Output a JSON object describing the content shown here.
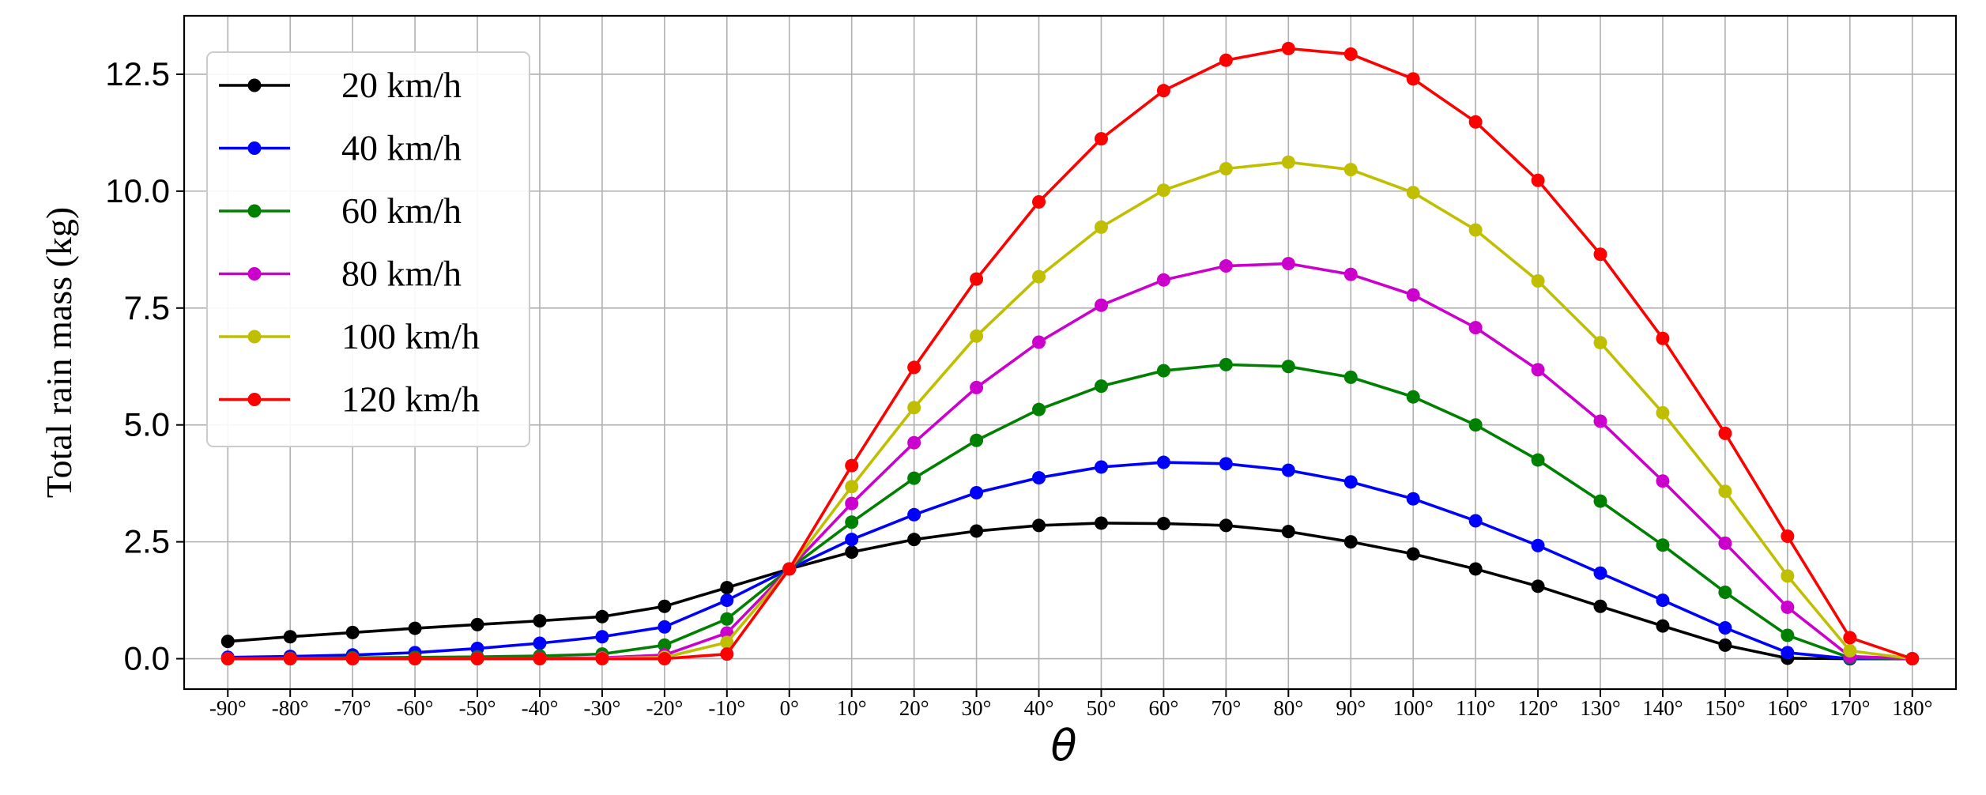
{
  "chart_data": {
    "type": "line",
    "title": "",
    "xlabel": "θ",
    "ylabel": "Total rain mass (kg)",
    "x": [
      -90,
      -80,
      -70,
      -60,
      -50,
      -40,
      -30,
      -20,
      -10,
      0,
      10,
      20,
      30,
      40,
      50,
      60,
      70,
      80,
      90,
      100,
      110,
      120,
      130,
      140,
      150,
      160,
      170,
      180
    ],
    "x_tick_labels": [
      "-90°",
      "-80°",
      "-70°",
      "-60°",
      "-50°",
      "-40°",
      "-30°",
      "-20°",
      "-10°",
      "0°",
      "10°",
      "20°",
      "30°",
      "40°",
      "50°",
      "60°",
      "70°",
      "80°",
      "90°",
      "100°",
      "110°",
      "120°",
      "130°",
      "140°",
      "150°",
      "160°",
      "170°",
      "180°"
    ],
    "y_ticks": [
      0.0,
      2.5,
      5.0,
      7.5,
      10.0,
      12.5
    ],
    "y_tick_labels": [
      "0.0",
      "2.5",
      "5.0",
      "7.5",
      "10.0",
      "12.5"
    ],
    "xlim": [
      -97,
      187
    ],
    "ylim": [
      -0.65,
      13.75
    ],
    "grid": true,
    "legend_position": "top-left",
    "series": [
      {
        "name": "20 km/h",
        "color": "#000000",
        "values": [
          0.37,
          0.47,
          0.56,
          0.65,
          0.73,
          0.81,
          0.9,
          1.12,
          1.52,
          1.92,
          2.28,
          2.55,
          2.73,
          2.85,
          2.9,
          2.89,
          2.85,
          2.72,
          2.5,
          2.24,
          1.92,
          1.55,
          1.12,
          0.7,
          0.29,
          0.01,
          0.0,
          0.0
        ]
      },
      {
        "name": "40 km/h",
        "color": "#0000ff",
        "values": [
          0.03,
          0.05,
          0.08,
          0.13,
          0.22,
          0.33,
          0.47,
          0.68,
          1.25,
          1.92,
          2.55,
          3.08,
          3.55,
          3.87,
          4.1,
          4.2,
          4.17,
          4.03,
          3.78,
          3.42,
          2.95,
          2.42,
          1.83,
          1.25,
          0.66,
          0.13,
          0.0,
          0.0
        ]
      },
      {
        "name": "60 km/h",
        "color": "#008000",
        "values": [
          0.0,
          0.01,
          0.02,
          0.03,
          0.04,
          0.06,
          0.1,
          0.29,
          0.85,
          1.92,
          2.92,
          3.86,
          4.67,
          5.33,
          5.83,
          6.16,
          6.29,
          6.25,
          6.02,
          5.6,
          5.0,
          4.25,
          3.37,
          2.43,
          1.42,
          0.5,
          0.02,
          0.0
        ]
      },
      {
        "name": "80 km/h",
        "color": "#cc00cc",
        "values": [
          0.0,
          0.0,
          0.0,
          0.0,
          0.01,
          0.01,
          0.02,
          0.08,
          0.55,
          1.92,
          3.32,
          4.62,
          5.8,
          6.77,
          7.56,
          8.1,
          8.4,
          8.45,
          8.22,
          7.78,
          7.08,
          6.18,
          5.08,
          3.8,
          2.47,
          1.1,
          0.05,
          0.0
        ]
      },
      {
        "name": "100 km/h",
        "color": "#bfbf00",
        "values": [
          0.0,
          0.0,
          0.0,
          0.0,
          0.0,
          0.0,
          0.01,
          0.03,
          0.35,
          1.92,
          3.68,
          5.37,
          6.9,
          8.17,
          9.23,
          10.02,
          10.48,
          10.62,
          10.46,
          9.97,
          9.17,
          8.08,
          6.76,
          5.26,
          3.58,
          1.77,
          0.17,
          0.0
        ]
      },
      {
        "name": "120 km/h",
        "color": "#ff0000",
        "values": [
          0.0,
          0.0,
          0.0,
          0.0,
          0.0,
          0.0,
          0.0,
          0.0,
          0.1,
          1.92,
          4.13,
          6.23,
          8.12,
          9.77,
          11.12,
          12.15,
          12.8,
          13.05,
          12.93,
          12.4,
          11.48,
          10.23,
          8.65,
          6.85,
          4.82,
          2.62,
          0.45,
          0.0
        ]
      }
    ]
  }
}
